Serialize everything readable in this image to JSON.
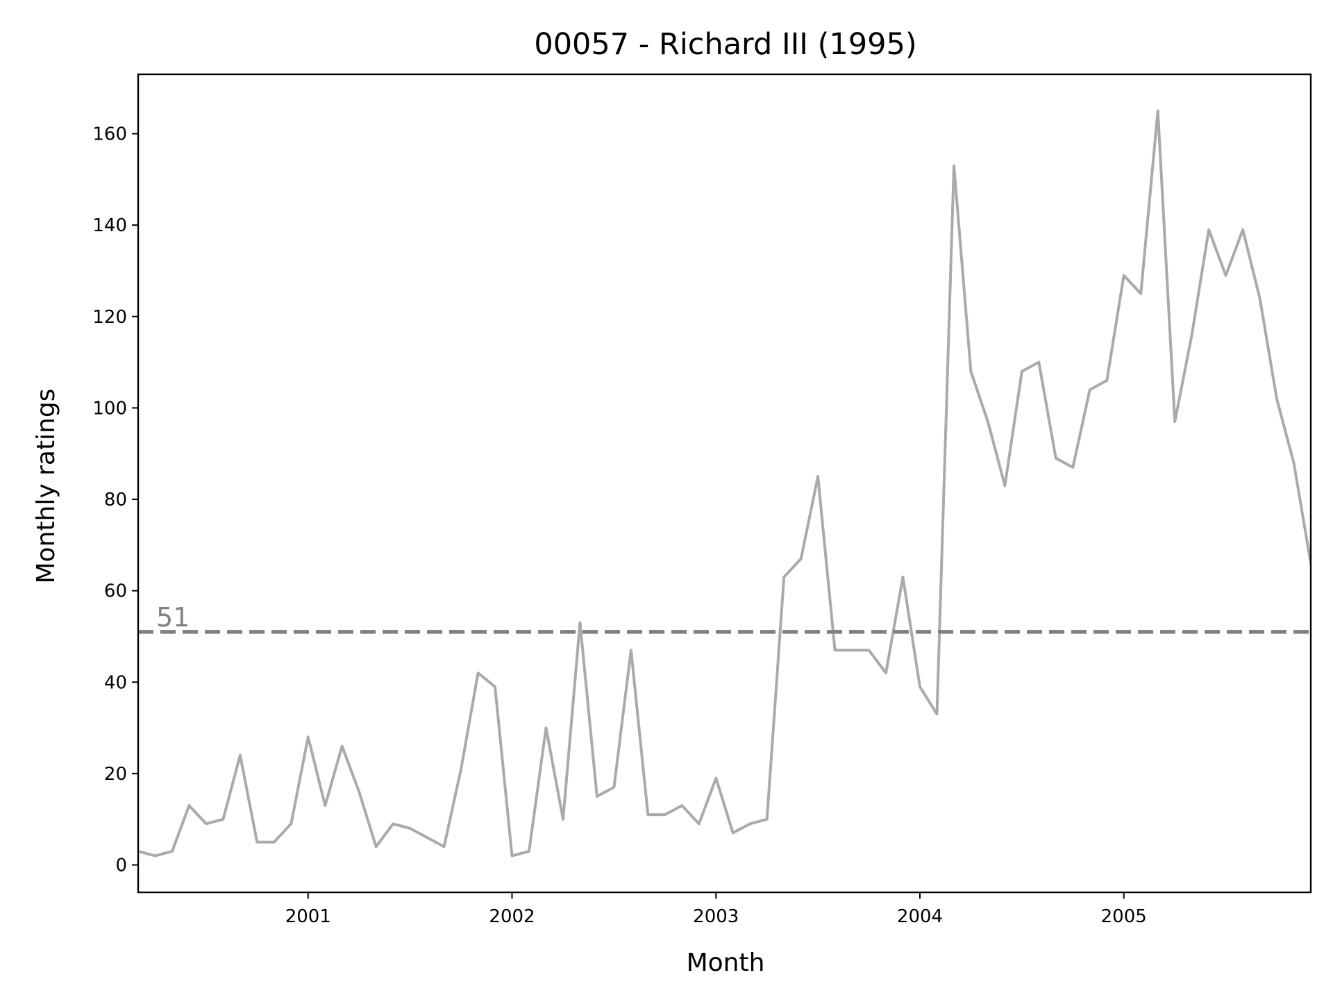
{
  "chart_data": {
    "type": "line",
    "title": "00057 - Richard III (1995)",
    "xlabel": "Month",
    "ylabel": "Monthly ratings",
    "x_start": "2000-03",
    "x_range": [
      "2000-03",
      "2005-12"
    ],
    "ylim": [
      -6,
      173
    ],
    "yticks": [
      0,
      20,
      40,
      60,
      80,
      100,
      120,
      140,
      160
    ],
    "xticks": [
      {
        "label": "2001",
        "date": "2001-01"
      },
      {
        "label": "2002",
        "date": "2002-01"
      },
      {
        "label": "2003",
        "date": "2003-01"
      },
      {
        "label": "2004",
        "date": "2004-01"
      },
      {
        "label": "2005",
        "date": "2005-01"
      }
    ],
    "grid": false,
    "series": [
      {
        "color": "#aaaaaa",
        "x": [
          "2000-03",
          "2000-04",
          "2000-05",
          "2000-06",
          "2000-07",
          "2000-08",
          "2000-09",
          "2000-10",
          "2000-11",
          "2000-12",
          "2001-01",
          "2001-02",
          "2001-03",
          "2001-04",
          "2001-05",
          "2001-06",
          "2001-07",
          "2001-08",
          "2001-09",
          "2001-10",
          "2001-11",
          "2001-12",
          "2002-01",
          "2002-02",
          "2002-03",
          "2002-04",
          "2002-05",
          "2002-06",
          "2002-07",
          "2002-08",
          "2002-09",
          "2002-10",
          "2002-11",
          "2002-12",
          "2003-01",
          "2003-02",
          "2003-03",
          "2003-04",
          "2003-05",
          "2003-06",
          "2003-07",
          "2003-08",
          "2003-09",
          "2003-10",
          "2003-11",
          "2003-12",
          "2004-01",
          "2004-02",
          "2004-03",
          "2004-04",
          "2004-05",
          "2004-06",
          "2004-07",
          "2004-08",
          "2004-09",
          "2004-10",
          "2004-11",
          "2004-12",
          "2005-01",
          "2005-02",
          "2005-03",
          "2005-04",
          "2005-05",
          "2005-06",
          "2005-07",
          "2005-08",
          "2005-09",
          "2005-10",
          "2005-11",
          "2005-12"
        ],
        "values": [
          3,
          2,
          3,
          13,
          9,
          10,
          24,
          5,
          5,
          9,
          28,
          13,
          26,
          16,
          4,
          9,
          8,
          6,
          4,
          21,
          42,
          39,
          2,
          3,
          30,
          10,
          53,
          15,
          17,
          47,
          11,
          11,
          13,
          9,
          19,
          7,
          9,
          10,
          63,
          67,
          85,
          47,
          47,
          47,
          42,
          63,
          39,
          33,
          153,
          108,
          97,
          83,
          108,
          110,
          89,
          87,
          104,
          106,
          129,
          125,
          165,
          97,
          116,
          139,
          129,
          139,
          124,
          102,
          88,
          66
        ]
      }
    ],
    "reference_line": {
      "value": 51,
      "label": "51",
      "style": "dashed",
      "color": "#808080"
    }
  }
}
